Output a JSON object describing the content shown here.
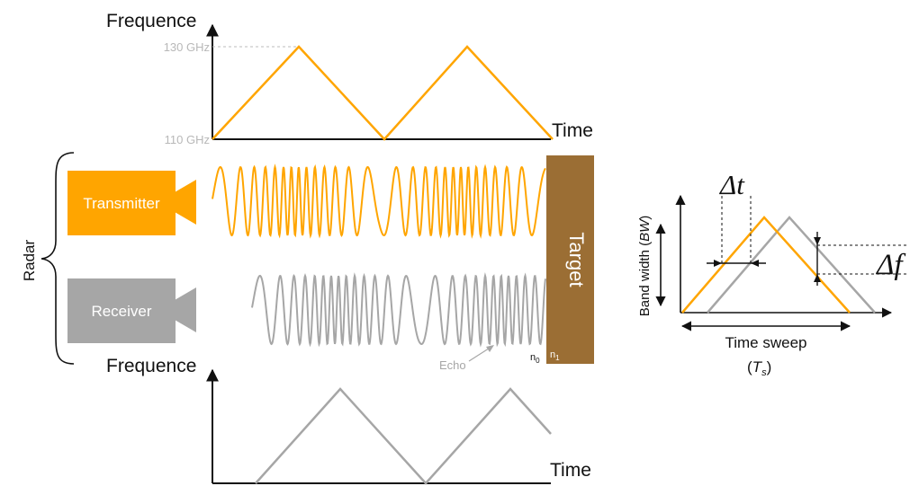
{
  "top_plot": {
    "ylabel": "Frequence",
    "xlabel": "Time",
    "tick_high": "130 GHz",
    "tick_low": "110 GHz"
  },
  "bottom_plot": {
    "ylabel": "Frequence",
    "xlabel": "Time"
  },
  "radar": {
    "label": "Radar",
    "transmitter": "Transmitter",
    "receiver": "Receiver"
  },
  "target": {
    "label": "Target",
    "n0": "n",
    "n0_sub": "0",
    "n1": "n",
    "n1_sub": "1"
  },
  "echo": {
    "label": "Echo"
  },
  "inset": {
    "delta_t": "Δt",
    "delta_f": "Δf",
    "ylabel_text": "Band width (",
    "ylabel_var": "BW",
    "ylabel_close": ")",
    "xlabel": "Time sweep",
    "ts_open": "(",
    "ts_var": "T",
    "ts_sub": "s",
    "ts_close": ")"
  },
  "colors": {
    "transmit": "#ffa500",
    "receive": "#a6a6a6",
    "target": "#9b6e34"
  }
}
